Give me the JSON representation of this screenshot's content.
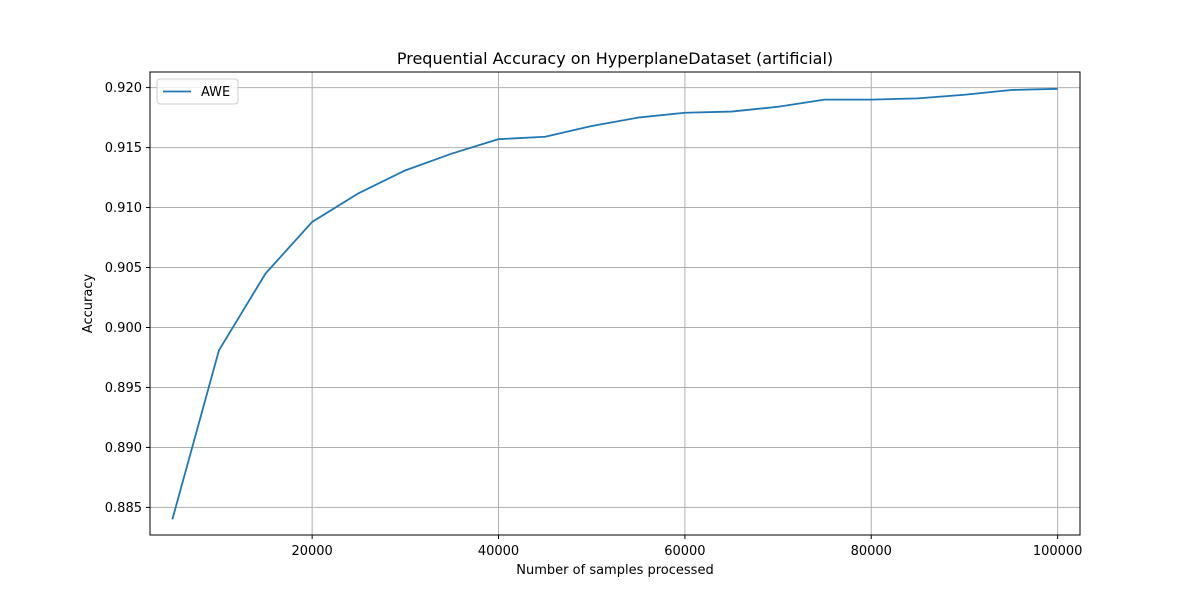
{
  "chart_data": {
    "type": "line",
    "title": "Prequential Accuracy on HyperplaneDataset (artificial)",
    "xlabel": "Number of samples processed",
    "ylabel": "Accuracy",
    "xlim": [
      2600,
      102400
    ],
    "ylim": [
      0.8827,
      0.9213
    ],
    "xticks": [
      20000,
      40000,
      60000,
      80000,
      100000
    ],
    "xtick_labels": [
      "20000",
      "40000",
      "60000",
      "80000",
      "100000"
    ],
    "yticks": [
      0.885,
      0.89,
      0.895,
      0.9,
      0.905,
      0.91,
      0.915,
      0.92
    ],
    "ytick_labels": [
      "0.885",
      "0.890",
      "0.895",
      "0.900",
      "0.905",
      "0.910",
      "0.915",
      "0.920"
    ],
    "grid": true,
    "legend_position": "top-left",
    "series": [
      {
        "name": "AWE",
        "color": "#1f77b4",
        "x": [
          5000,
          10000,
          15000,
          20000,
          25000,
          30000,
          35000,
          40000,
          45000,
          50000,
          55000,
          60000,
          65000,
          70000,
          75000,
          80000,
          85000,
          90000,
          95000,
          100000
        ],
        "y": [
          0.884,
          0.8981,
          0.9045,
          0.9088,
          0.9112,
          0.9131,
          0.9145,
          0.9157,
          0.9159,
          0.9168,
          0.9175,
          0.9179,
          0.918,
          0.9184,
          0.919,
          0.919,
          0.9191,
          0.9194,
          0.9198,
          0.9199
        ]
      }
    ]
  }
}
